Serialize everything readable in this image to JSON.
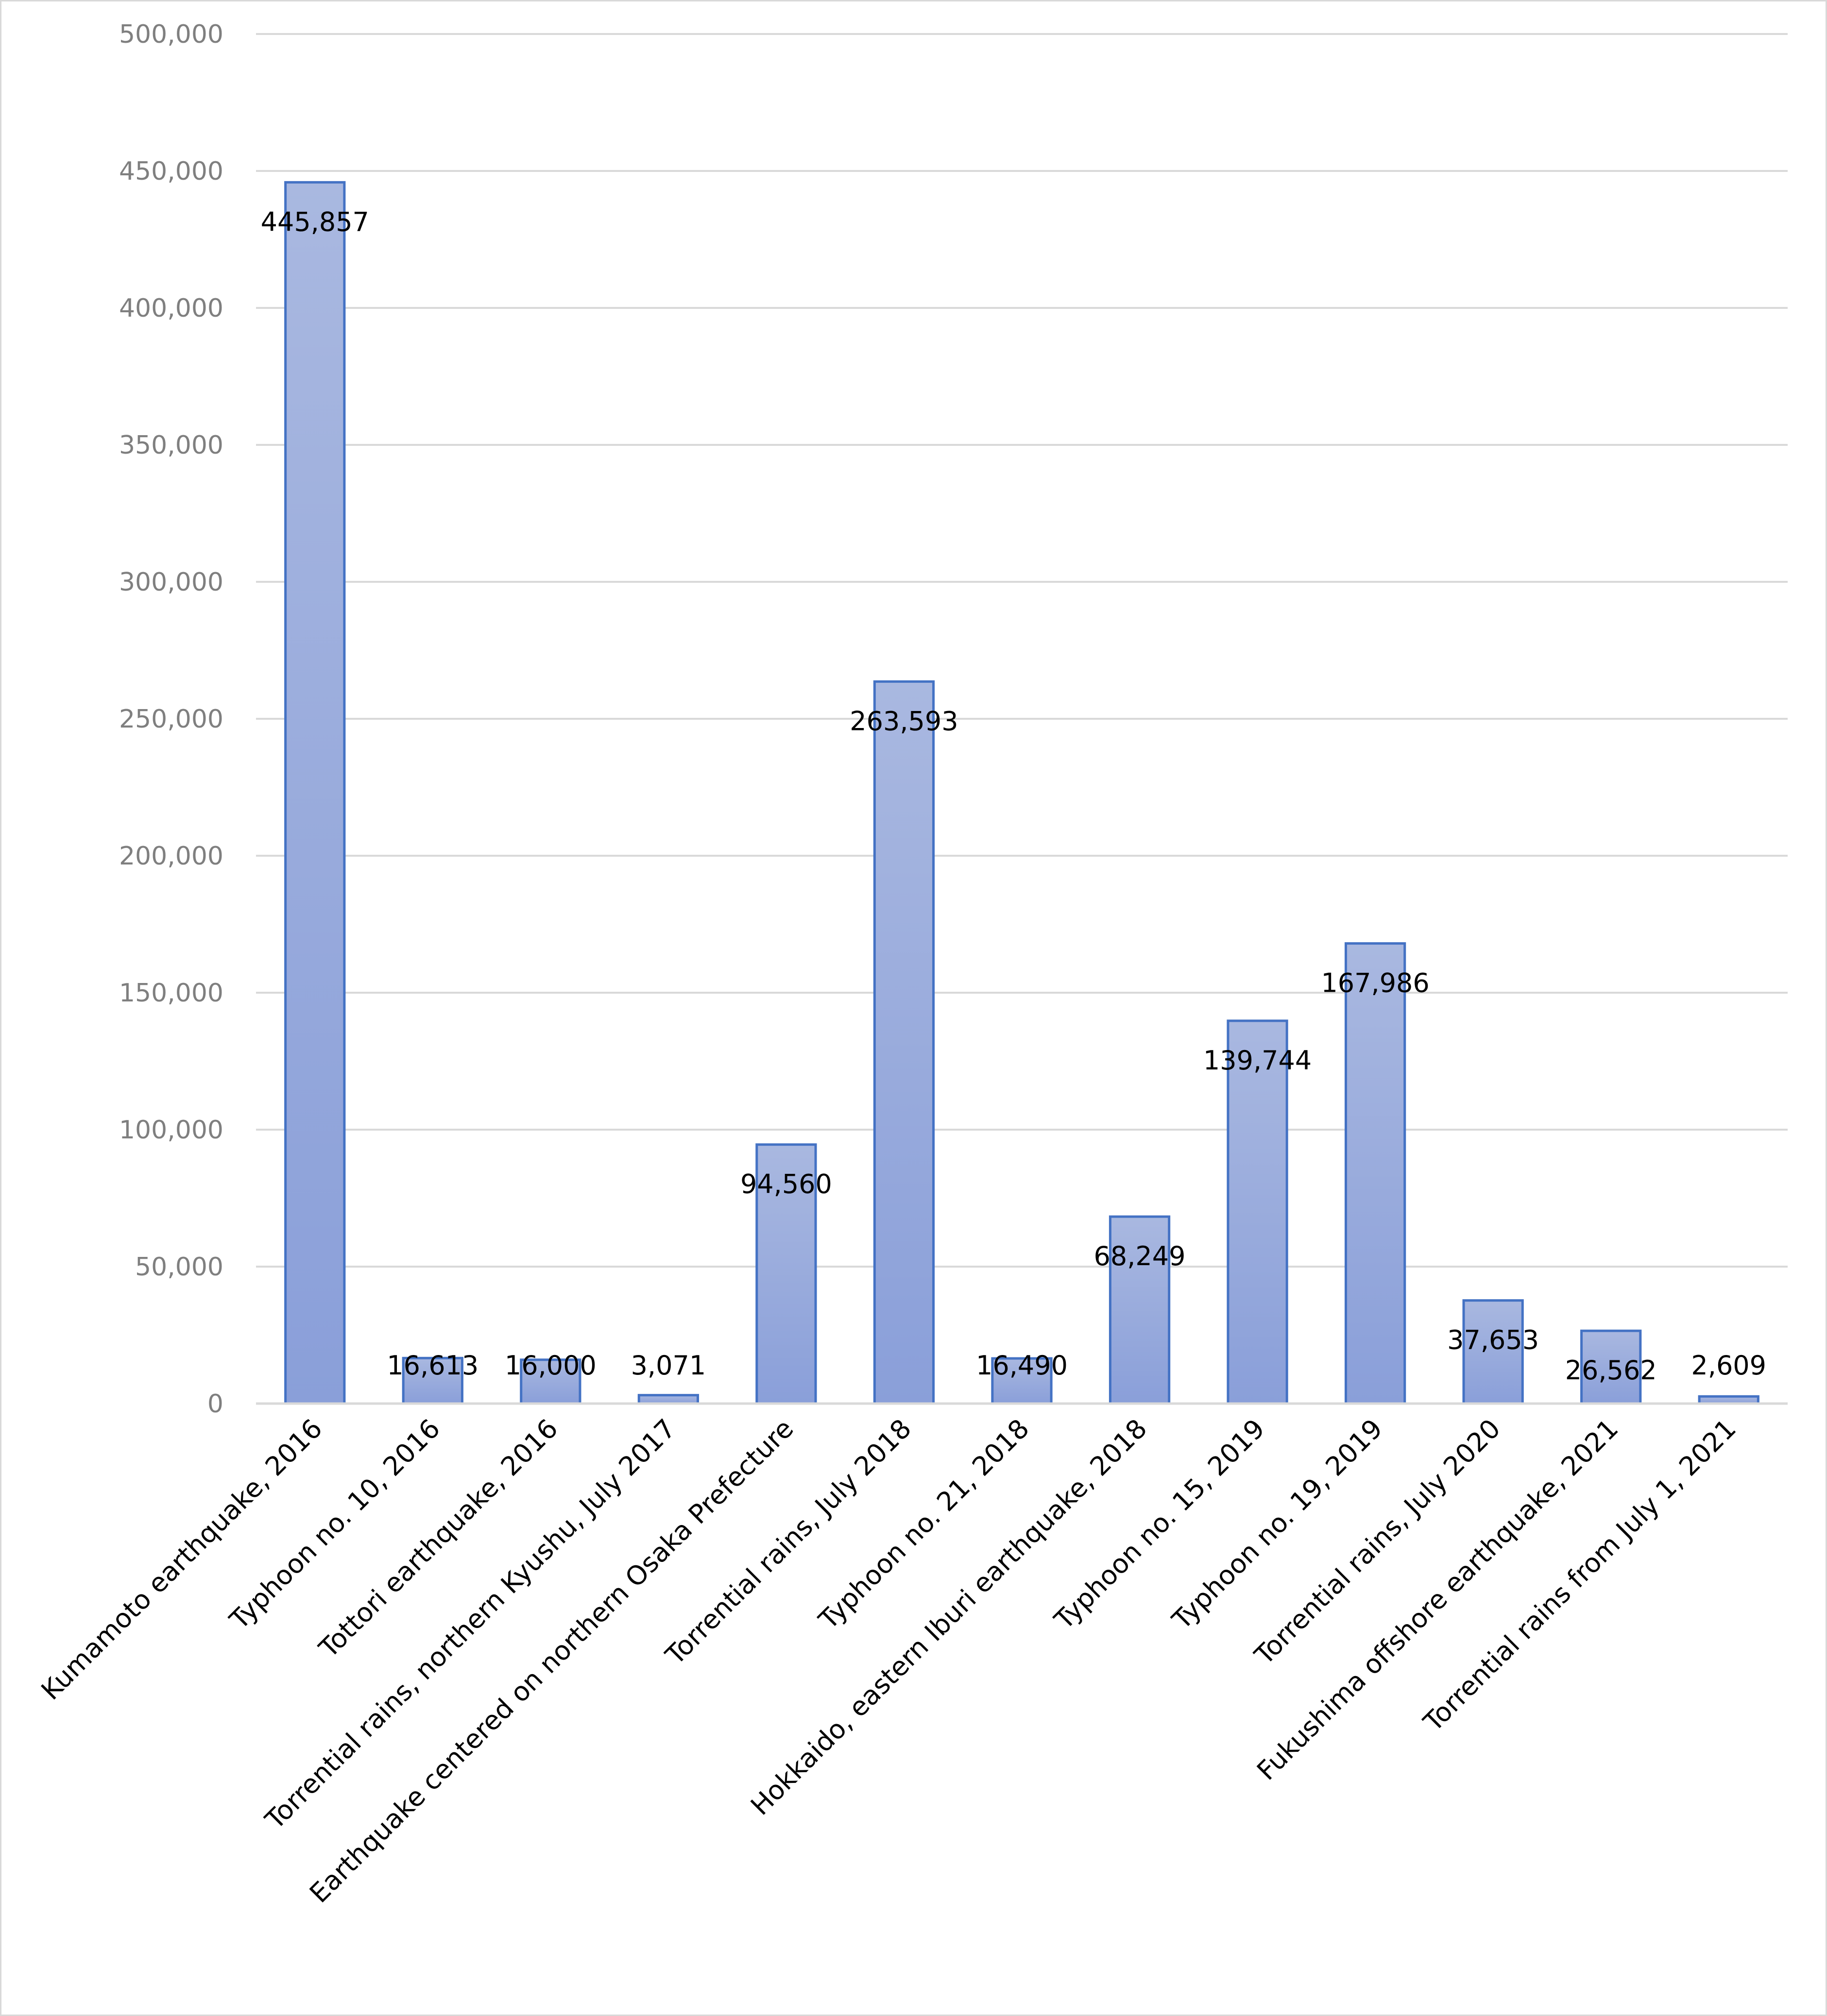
{
  "chart_data": {
    "type": "bar",
    "title": "",
    "xlabel": "",
    "ylabel": "",
    "ylim": [
      0,
      500000
    ],
    "ytick_step": 50000,
    "yticks": [
      "0",
      "50,000",
      "100,000",
      "150,000",
      "200,000",
      "250,000",
      "300,000",
      "350,000",
      "400,000",
      "450,000",
      "500,000"
    ],
    "grid": true,
    "legend": "none",
    "bar_color": "#8fa3d9",
    "bar_border": "#4472c4",
    "categories": [
      "Kumamoto earthquake, 2016",
      "Typhoon no. 10, 2016",
      "Tottori earthquake, 2016",
      "Torrential rains, northern Kyushu, July 2017",
      "Earthquake centered on northern Osaka Prefecture",
      "Torrential rains, July 2018",
      "Typhoon no. 21, 2018",
      "Hokkaido, eastern Iburi earthquake, 2018",
      "Typhoon no. 15, 2019",
      "Typhoon no. 19, 2019",
      "Torrential rains, July 2020",
      "Fukushima offshore earthquake, 2021",
      "Torrential rains from July 1, 2021"
    ],
    "values": [
      445857,
      16613,
      16000,
      3071,
      94560,
      263593,
      16490,
      68249,
      139744,
      167986,
      37653,
      26562,
      2609
    ],
    "data_labels": [
      "445,857",
      "16,613",
      "16,000",
      "3,071",
      "94,560",
      "263,593",
      "16,490",
      "68,249",
      "139,744",
      "167,986",
      "37,653",
      "26,562",
      "2,609"
    ]
  }
}
